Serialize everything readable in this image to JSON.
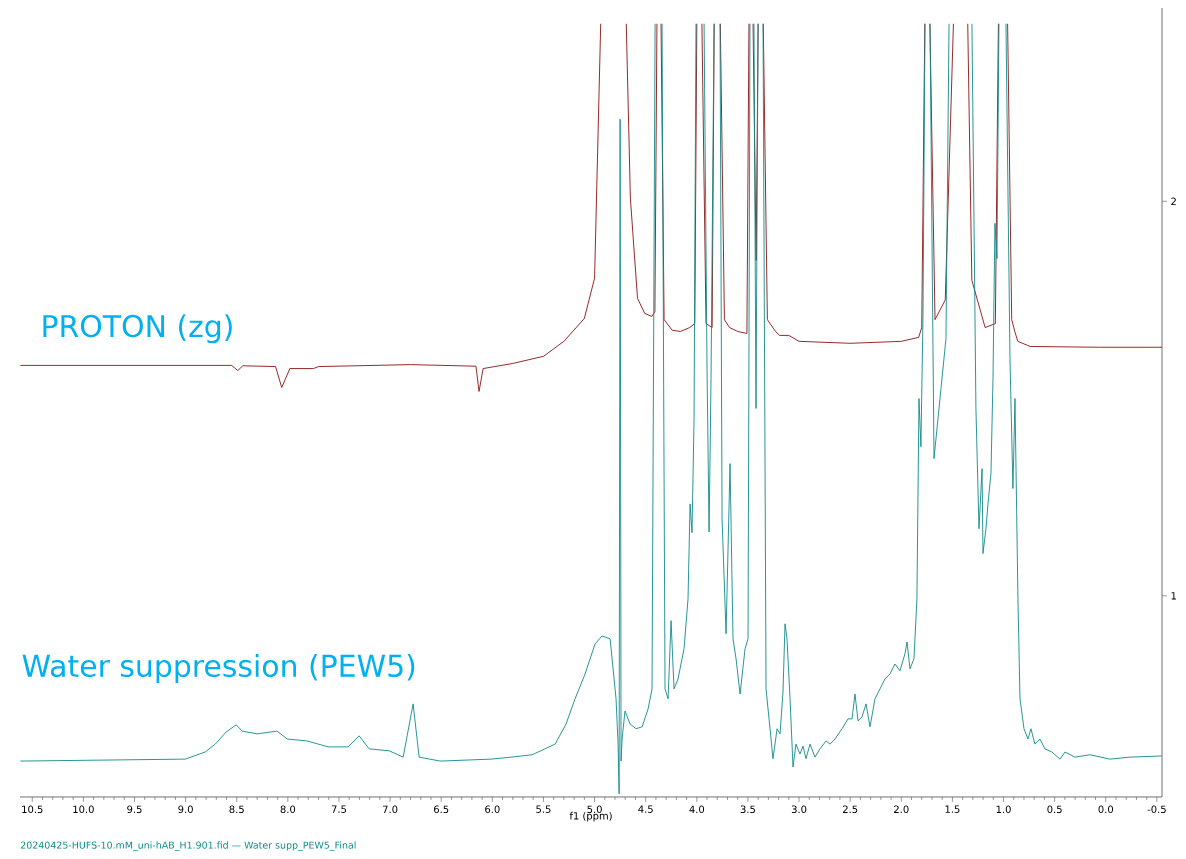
{
  "chart_data": {
    "type": "line",
    "xlabel": "f1 (ppm)",
    "xlim": [
      10.62,
      -0.55
    ],
    "ylim": [
      0.49,
      2.49
    ],
    "xticks": [
      10.5,
      {
        "value": 10,
        "label": "10.0"
      },
      9.5,
      {
        "value": 9,
        "label": "9.0"
      },
      8.5,
      {
        "value": 8,
        "label": "8.0"
      },
      7.5,
      {
        "value": 7,
        "label": "7.0"
      },
      6.5,
      {
        "value": 6,
        "label": "6.0"
      },
      5.5,
      {
        "value": 5,
        "label": "5.0"
      },
      4.5,
      {
        "value": 4,
        "label": "4.0"
      },
      3.5,
      {
        "value": 3,
        "label": "3.0"
      },
      2.5,
      {
        "value": 2,
        "label": "2.0"
      },
      1.5,
      {
        "value": 1,
        "label": "1.0"
      },
      0.5,
      {
        "value": 0,
        "label": "0.0"
      },
      -0.5
    ],
    "yticks": [
      1,
      2
    ],
    "annotations": [
      "20240425-HUFS-10.mM_uni-hAB_H1.901.fid — Water supp_PEW5_Final"
    ],
    "series": [
      {
        "name": "PROTON (zg)",
        "color": "#8b1111",
        "x": [
          10.617,
          8.55,
          8.49,
          8.44,
          8.12,
          8.06,
          7.98,
          7.75,
          7.7,
          6.8,
          6.16,
          6.13,
          6.09,
          5.8,
          5.5,
          5.3,
          5.1,
          5.0,
          4.94,
          4.8,
          4.69,
          4.65,
          4.58,
          4.51,
          4.44,
          4.41,
          4.39,
          4.37,
          4.35,
          4.32,
          4.24,
          4.16,
          4.07,
          4.02,
          4.0,
          3.975,
          3.95,
          3.91,
          3.85,
          3.83,
          3.8,
          3.77,
          3.73,
          3.68,
          3.6,
          3.51,
          3.49,
          3.47,
          3.45,
          3.42,
          3.4,
          3.375,
          3.35,
          3.31,
          3.23,
          3.19,
          3.1,
          3.0,
          2.5,
          2.0,
          1.83,
          1.8,
          1.77,
          1.745,
          1.72,
          1.67,
          1.57,
          1.49,
          1.42,
          1.35,
          1.31,
          1.18,
          1.08,
          1.05,
          1.005,
          0.96,
          0.92,
          0.89,
          0.86,
          0.74,
          0.06,
          -0.55
        ],
        "values": [
          1.584,
          1.584,
          1.571,
          1.583,
          1.581,
          1.528,
          1.576,
          1.576,
          1.581,
          1.586,
          1.582,
          1.518,
          1.576,
          1.589,
          1.607,
          1.645,
          1.703,
          1.805,
          2.45,
          null,
          2.45,
          2.008,
          1.754,
          1.716,
          1.708,
          1.72,
          2.45,
          null,
          2.45,
          1.7,
          1.673,
          1.67,
          1.68,
          1.69,
          2.45,
          null,
          2.45,
          1.69,
          1.68,
          2.45,
          null,
          2.45,
          1.7,
          1.68,
          1.67,
          1.665,
          2.45,
          null,
          2.45,
          1.85,
          2.45,
          null,
          2.45,
          1.7,
          1.67,
          1.66,
          1.66,
          1.645,
          1.64,
          1.645,
          1.655,
          1.68,
          2.45,
          null,
          2.45,
          1.7,
          1.75,
          2.45,
          null,
          2.45,
          1.8,
          1.68,
          1.69,
          2.45,
          null,
          2.45,
          1.7,
          1.67,
          1.645,
          1.632,
          1.63,
          1.63
        ]
      },
      {
        "name": "Water suppression (PEW5)",
        "color": "#11898a",
        "x": [
          10.617,
          9.004,
          8.809,
          8.71,
          8.603,
          8.505,
          8.447,
          8.3,
          8.105,
          8.007,
          7.811,
          7.606,
          7.41,
          7.303,
          7.205,
          7.009,
          6.872,
          6.775,
          6.716,
          6.51,
          6.012,
          5.816,
          5.611,
          5.386,
          5.279,
          5.191,
          5.093,
          4.995,
          4.927,
          4.848,
          4.79,
          4.77,
          4.76,
          4.75,
          4.741,
          4.731,
          4.702,
          4.653,
          4.594,
          4.535,
          4.477,
          4.438,
          4.408,
          4.37,
          4.34,
          4.311,
          4.281,
          4.252,
          4.223,
          4.184,
          4.125,
          4.086,
          4.066,
          4.047,
          4.027,
          4.008,
          3.97,
          3.929,
          3.9,
          3.88,
          3.861,
          3.831,
          3.8,
          3.773,
          3.753,
          3.714,
          3.675,
          3.646,
          3.616,
          3.577,
          3.528,
          3.499,
          3.48,
          3.46,
          3.441,
          3.421,
          3.401,
          3.376,
          3.352,
          3.323,
          3.284,
          3.255,
          3.215,
          3.186,
          3.157,
          3.137,
          3.118,
          3.088,
          3.059,
          3.03,
          2.991,
          2.961,
          2.932,
          2.893,
          2.844,
          2.795,
          2.736,
          2.697,
          2.648,
          2.58,
          2.521,
          2.482,
          2.453,
          2.423,
          2.384,
          2.345,
          2.306,
          2.257,
          2.208,
          2.16,
          2.111,
          2.062,
          2.013,
          1.964,
          1.944,
          1.915,
          1.876,
          1.847,
          1.827,
          1.808,
          1.788,
          1.768,
          1.745,
          1.719,
          1.68,
          1.641,
          1.612,
          1.563,
          1.533,
          1.42,
          1.309,
          1.27,
          1.24,
          1.21,
          1.201,
          1.172,
          1.152,
          1.123,
          1.103,
          1.084,
          1.064,
          1.045,
          1.01,
          0.976,
          0.937,
          0.908,
          0.888,
          0.859,
          0.839,
          0.8,
          0.761,
          0.732,
          0.693,
          0.644,
          0.595,
          0.527,
          0.448,
          0.399,
          0.302,
          0.155,
          -0.041,
          -0.236,
          -0.55
        ],
        "values": [
          0.581,
          0.586,
          0.604,
          0.624,
          0.655,
          0.673,
          0.657,
          0.65,
          0.657,
          0.637,
          0.632,
          0.617,
          0.617,
          0.645,
          0.612,
          0.607,
          0.591,
          0.726,
          0.591,
          0.581,
          0.586,
          0.591,
          0.597,
          0.624,
          0.675,
          0.739,
          0.802,
          0.878,
          0.898,
          0.891,
          0.739,
          0.624,
          0.498,
          2.208,
          0.581,
          0.637,
          0.708,
          0.675,
          0.663,
          0.668,
          0.713,
          0.764,
          2.45,
          null,
          2.45,
          0.764,
          0.739,
          0.937,
          0.764,
          0.789,
          0.866,
          0.992,
          1.233,
          1.16,
          1.449,
          2.45,
          null,
          2.45,
          1.576,
          1.162,
          1.551,
          2.45,
          null,
          2.45,
          1.195,
          0.904,
          1.335,
          0.891,
          0.84,
          0.751,
          0.866,
          0.891,
          2.45,
          null,
          2.45,
          1.475,
          2.45,
          null,
          2.45,
          0.764,
          0.663,
          0.587,
          0.663,
          0.65,
          0.756,
          0.929,
          0.891,
          0.739,
          0.566,
          0.624,
          0.599,
          0.619,
          0.587,
          0.624,
          0.591,
          0.612,
          0.632,
          0.624,
          0.637,
          0.663,
          0.688,
          0.688,
          0.751,
          0.683,
          0.693,
          0.726,
          0.668,
          0.739,
          0.764,
          0.789,
          0.802,
          0.827,
          0.81,
          0.853,
          0.883,
          0.815,
          0.84,
          0.992,
          1.5,
          1.378,
          1.703,
          2.45,
          null,
          2.45,
          1.348,
          1.449,
          1.525,
          1.652,
          2.45,
          null,
          2.45,
          1.475,
          1.17,
          1.322,
          1.107,
          1.17,
          1.233,
          1.31,
          1.551,
          1.944,
          1.855,
          2.45,
          null,
          2.45,
          1.602,
          1.272,
          1.5,
          0.992,
          0.739,
          0.663,
          0.637,
          0.663,
          0.624,
          0.637,
          0.612,
          0.604,
          0.586,
          0.604,
          0.591,
          0.597,
          0.586,
          0.591,
          0.594
        ]
      }
    ]
  }
}
